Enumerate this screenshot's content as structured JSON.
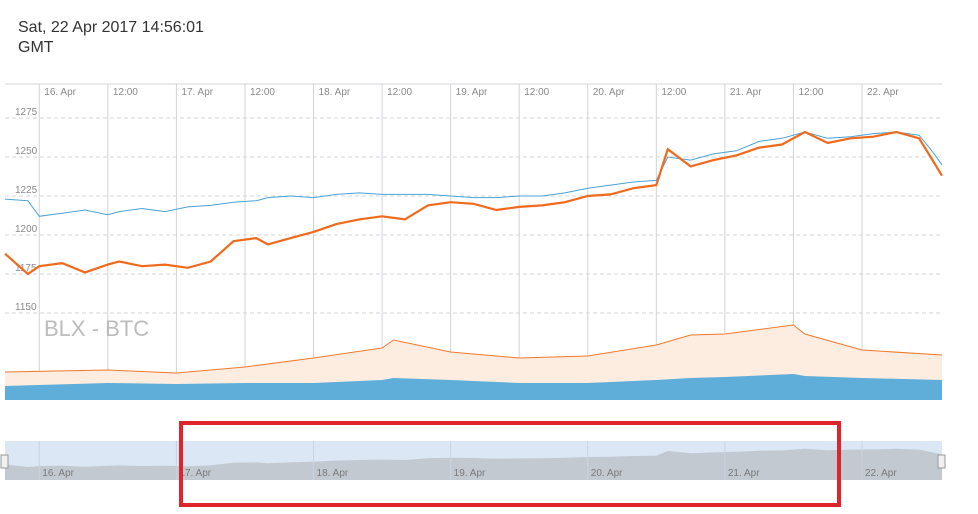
{
  "header": {
    "datetime": "Sat, 22 Apr 2017 14:56:01",
    "timezone": "GMT"
  },
  "watermark": "BLX - BTC",
  "colors": {
    "blx_line": "#f06a1c",
    "btc_line": "#4aa3d8",
    "volume_orange_fill": "#fdece0",
    "volume_orange_line": "#f07a2e",
    "volume_blue_fill": "#5eaed9",
    "navigator_bg": "#dbe7f5",
    "navigator_series": "#c3c9d1",
    "highlight_box": "#e0242b"
  },
  "chart_data": {
    "type": "line",
    "title": "",
    "x_tick_labels": [
      "16. Apr",
      "12:00",
      "17. Apr",
      "12:00",
      "18. Apr",
      "12:00",
      "19. Apr",
      "12:00",
      "20. Apr",
      "12:00",
      "21. Apr",
      "12:00",
      "22. Apr"
    ],
    "x_range": [
      "2017-04-15 18:00",
      "2017-04-22 14:00"
    ],
    "y_tick_labels": [
      "1275",
      "1250",
      "1225",
      "1200",
      "1175",
      "1150"
    ],
    "ylim": [
      1150,
      1275
    ],
    "grid": true,
    "series": [
      {
        "name": "BLX",
        "x": [
          "2017-04-15 18:00",
          "2017-04-15 22:00",
          "2017-04-16 00:00",
          "2017-04-16 04:00",
          "2017-04-16 08:00",
          "2017-04-16 12:00",
          "2017-04-16 14:00",
          "2017-04-16 18:00",
          "2017-04-16 22:00",
          "2017-04-17 02:00",
          "2017-04-17 06:00",
          "2017-04-17 10:00",
          "2017-04-17 14:00",
          "2017-04-17 16:00",
          "2017-04-17 20:00",
          "2017-04-18 00:00",
          "2017-04-18 04:00",
          "2017-04-18 08:00",
          "2017-04-18 12:00",
          "2017-04-18 16:00",
          "2017-04-18 20:00",
          "2017-04-19 00:00",
          "2017-04-19 04:00",
          "2017-04-19 08:00",
          "2017-04-19 12:00",
          "2017-04-19 16:00",
          "2017-04-19 20:00",
          "2017-04-20 00:00",
          "2017-04-20 04:00",
          "2017-04-20 08:00",
          "2017-04-20 12:00",
          "2017-04-20 14:00",
          "2017-04-20 18:00",
          "2017-04-20 22:00",
          "2017-04-21 02:00",
          "2017-04-21 06:00",
          "2017-04-21 10:00",
          "2017-04-21 14:00",
          "2017-04-21 18:00",
          "2017-04-21 22:00",
          "2017-04-22 02:00",
          "2017-04-22 06:00",
          "2017-04-22 10:00",
          "2017-04-22 12:00",
          "2017-04-22 14:00"
        ],
        "values": [
          1188,
          1175,
          1180,
          1182,
          1176,
          1181,
          1183,
          1180,
          1181,
          1179,
          1183,
          1196,
          1198,
          1194,
          1198,
          1202,
          1207,
          1210,
          1212,
          1210,
          1219,
          1221,
          1220,
          1216,
          1218,
          1219,
          1221,
          1225,
          1226,
          1230,
          1232,
          1255,
          1244,
          1248,
          1251,
          1256,
          1258,
          1266,
          1259,
          1262,
          1263,
          1266,
          1262,
          1250,
          1238
        ]
      },
      {
        "name": "BTC",
        "x": [
          "2017-04-15 18:00",
          "2017-04-15 22:00",
          "2017-04-16 00:00",
          "2017-04-16 04:00",
          "2017-04-16 08:00",
          "2017-04-16 12:00",
          "2017-04-16 14:00",
          "2017-04-16 18:00",
          "2017-04-16 22:00",
          "2017-04-17 02:00",
          "2017-04-17 06:00",
          "2017-04-17 10:00",
          "2017-04-17 14:00",
          "2017-04-17 16:00",
          "2017-04-17 20:00",
          "2017-04-18 00:00",
          "2017-04-18 04:00",
          "2017-04-18 08:00",
          "2017-04-18 12:00",
          "2017-04-18 16:00",
          "2017-04-18 20:00",
          "2017-04-19 00:00",
          "2017-04-19 04:00",
          "2017-04-19 08:00",
          "2017-04-19 12:00",
          "2017-04-19 16:00",
          "2017-04-19 20:00",
          "2017-04-20 00:00",
          "2017-04-20 04:00",
          "2017-04-20 08:00",
          "2017-04-20 12:00",
          "2017-04-20 14:00",
          "2017-04-20 18:00",
          "2017-04-20 22:00",
          "2017-04-21 02:00",
          "2017-04-21 06:00",
          "2017-04-21 10:00",
          "2017-04-21 14:00",
          "2017-04-21 18:00",
          "2017-04-21 22:00",
          "2017-04-22 02:00",
          "2017-04-22 06:00",
          "2017-04-22 10:00",
          "2017-04-22 12:00",
          "2017-04-22 14:00"
        ],
        "values": [
          1223,
          1222,
          1212,
          1214,
          1216,
          1213,
          1215,
          1217,
          1215,
          1218,
          1219,
          1221,
          1222,
          1224,
          1225,
          1224,
          1226,
          1227,
          1226,
          1226,
          1226,
          1225,
          1224,
          1224,
          1225,
          1225,
          1227,
          1230,
          1232,
          1234,
          1235,
          1250,
          1248,
          1252,
          1254,
          1260,
          1262,
          1266,
          1262,
          1263,
          1265,
          1266,
          1264,
          1255,
          1245
        ]
      }
    ],
    "volume": {
      "x": [
        "2017-04-15 18:00",
        "2017-04-16 12:00",
        "2017-04-17 00:00",
        "2017-04-17 12:00",
        "2017-04-18 00:00",
        "2017-04-18 12:00",
        "2017-04-18 14:00",
        "2017-04-19 00:00",
        "2017-04-19 12:00",
        "2017-04-20 00:00",
        "2017-04-20 12:00",
        "2017-04-20 18:00",
        "2017-04-21 00:00",
        "2017-04-21 12:00",
        "2017-04-21 14:00",
        "2017-04-22 00:00",
        "2017-04-22 14:00"
      ],
      "blx": [
        0.28,
        0.3,
        0.27,
        0.33,
        0.42,
        0.52,
        0.6,
        0.48,
        0.42,
        0.44,
        0.55,
        0.65,
        0.66,
        0.75,
        0.66,
        0.5,
        0.45
      ],
      "btc": [
        0.14,
        0.17,
        0.16,
        0.17,
        0.17,
        0.2,
        0.22,
        0.2,
        0.17,
        0.17,
        0.2,
        0.22,
        0.23,
        0.26,
        0.24,
        0.22,
        0.2
      ]
    },
    "navigator": {
      "tick_labels": [
        "16. Apr",
        "17. Apr",
        "18. Apr",
        "19. Apr",
        "20. Apr",
        "21. Apr",
        "22. Apr"
      ]
    }
  }
}
